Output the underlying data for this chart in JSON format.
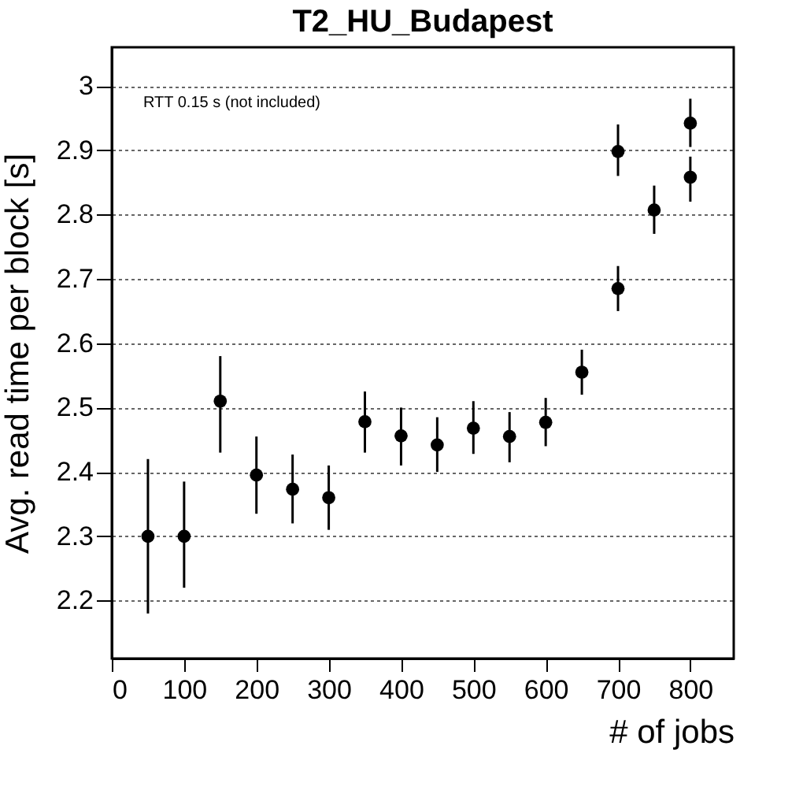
{
  "chart_data": {
    "type": "scatter",
    "title": "T2_HU_Budapest",
    "xlabel": "# of jobs",
    "ylabel": "Avg. read time per block [s]",
    "annotations": [
      "RTT 0.15 s (not included)"
    ],
    "x": [
      50,
      100,
      150,
      200,
      250,
      300,
      350,
      400,
      450,
      500,
      550,
      600,
      650,
      700,
      700,
      750,
      800,
      800
    ],
    "series": [
      {
        "color": "#000000",
        "values": [
          2.3,
          2.3,
          2.51,
          2.395,
          2.373,
          2.36,
          2.478,
          2.456,
          2.442,
          2.468,
          2.455,
          2.477,
          2.555,
          2.685,
          2.898,
          2.807,
          2.858,
          2.942
        ],
        "errors": [
          [
            2.18,
            2.42
          ],
          [
            2.22,
            2.385
          ],
          [
            2.43,
            2.58
          ],
          [
            2.335,
            2.455
          ],
          [
            2.32,
            2.427
          ],
          [
            2.31,
            2.41
          ],
          [
            2.43,
            2.525
          ],
          [
            2.41,
            2.5
          ],
          [
            2.4,
            2.485
          ],
          [
            2.428,
            2.51
          ],
          [
            2.415,
            2.493
          ],
          [
            2.44,
            2.515
          ],
          [
            2.52,
            2.59
          ],
          [
            2.65,
            2.72
          ],
          [
            2.86,
            2.94
          ],
          [
            2.77,
            2.845
          ],
          [
            2.82,
            2.89
          ],
          [
            2.905,
            2.98
          ]
        ]
      }
    ],
    "xlim": [
      0,
      860
    ],
    "ylim": [
      2.11,
      3.06
    ],
    "xticks": [
      0,
      100,
      200,
      300,
      400,
      500,
      600,
      700,
      800
    ],
    "yticks": [
      2.2,
      2.3,
      2.4,
      2.5,
      2.6,
      2.7,
      2.8,
      2.9,
      3
    ],
    "grid": "y",
    "marker": "circle",
    "legend": false
  }
}
